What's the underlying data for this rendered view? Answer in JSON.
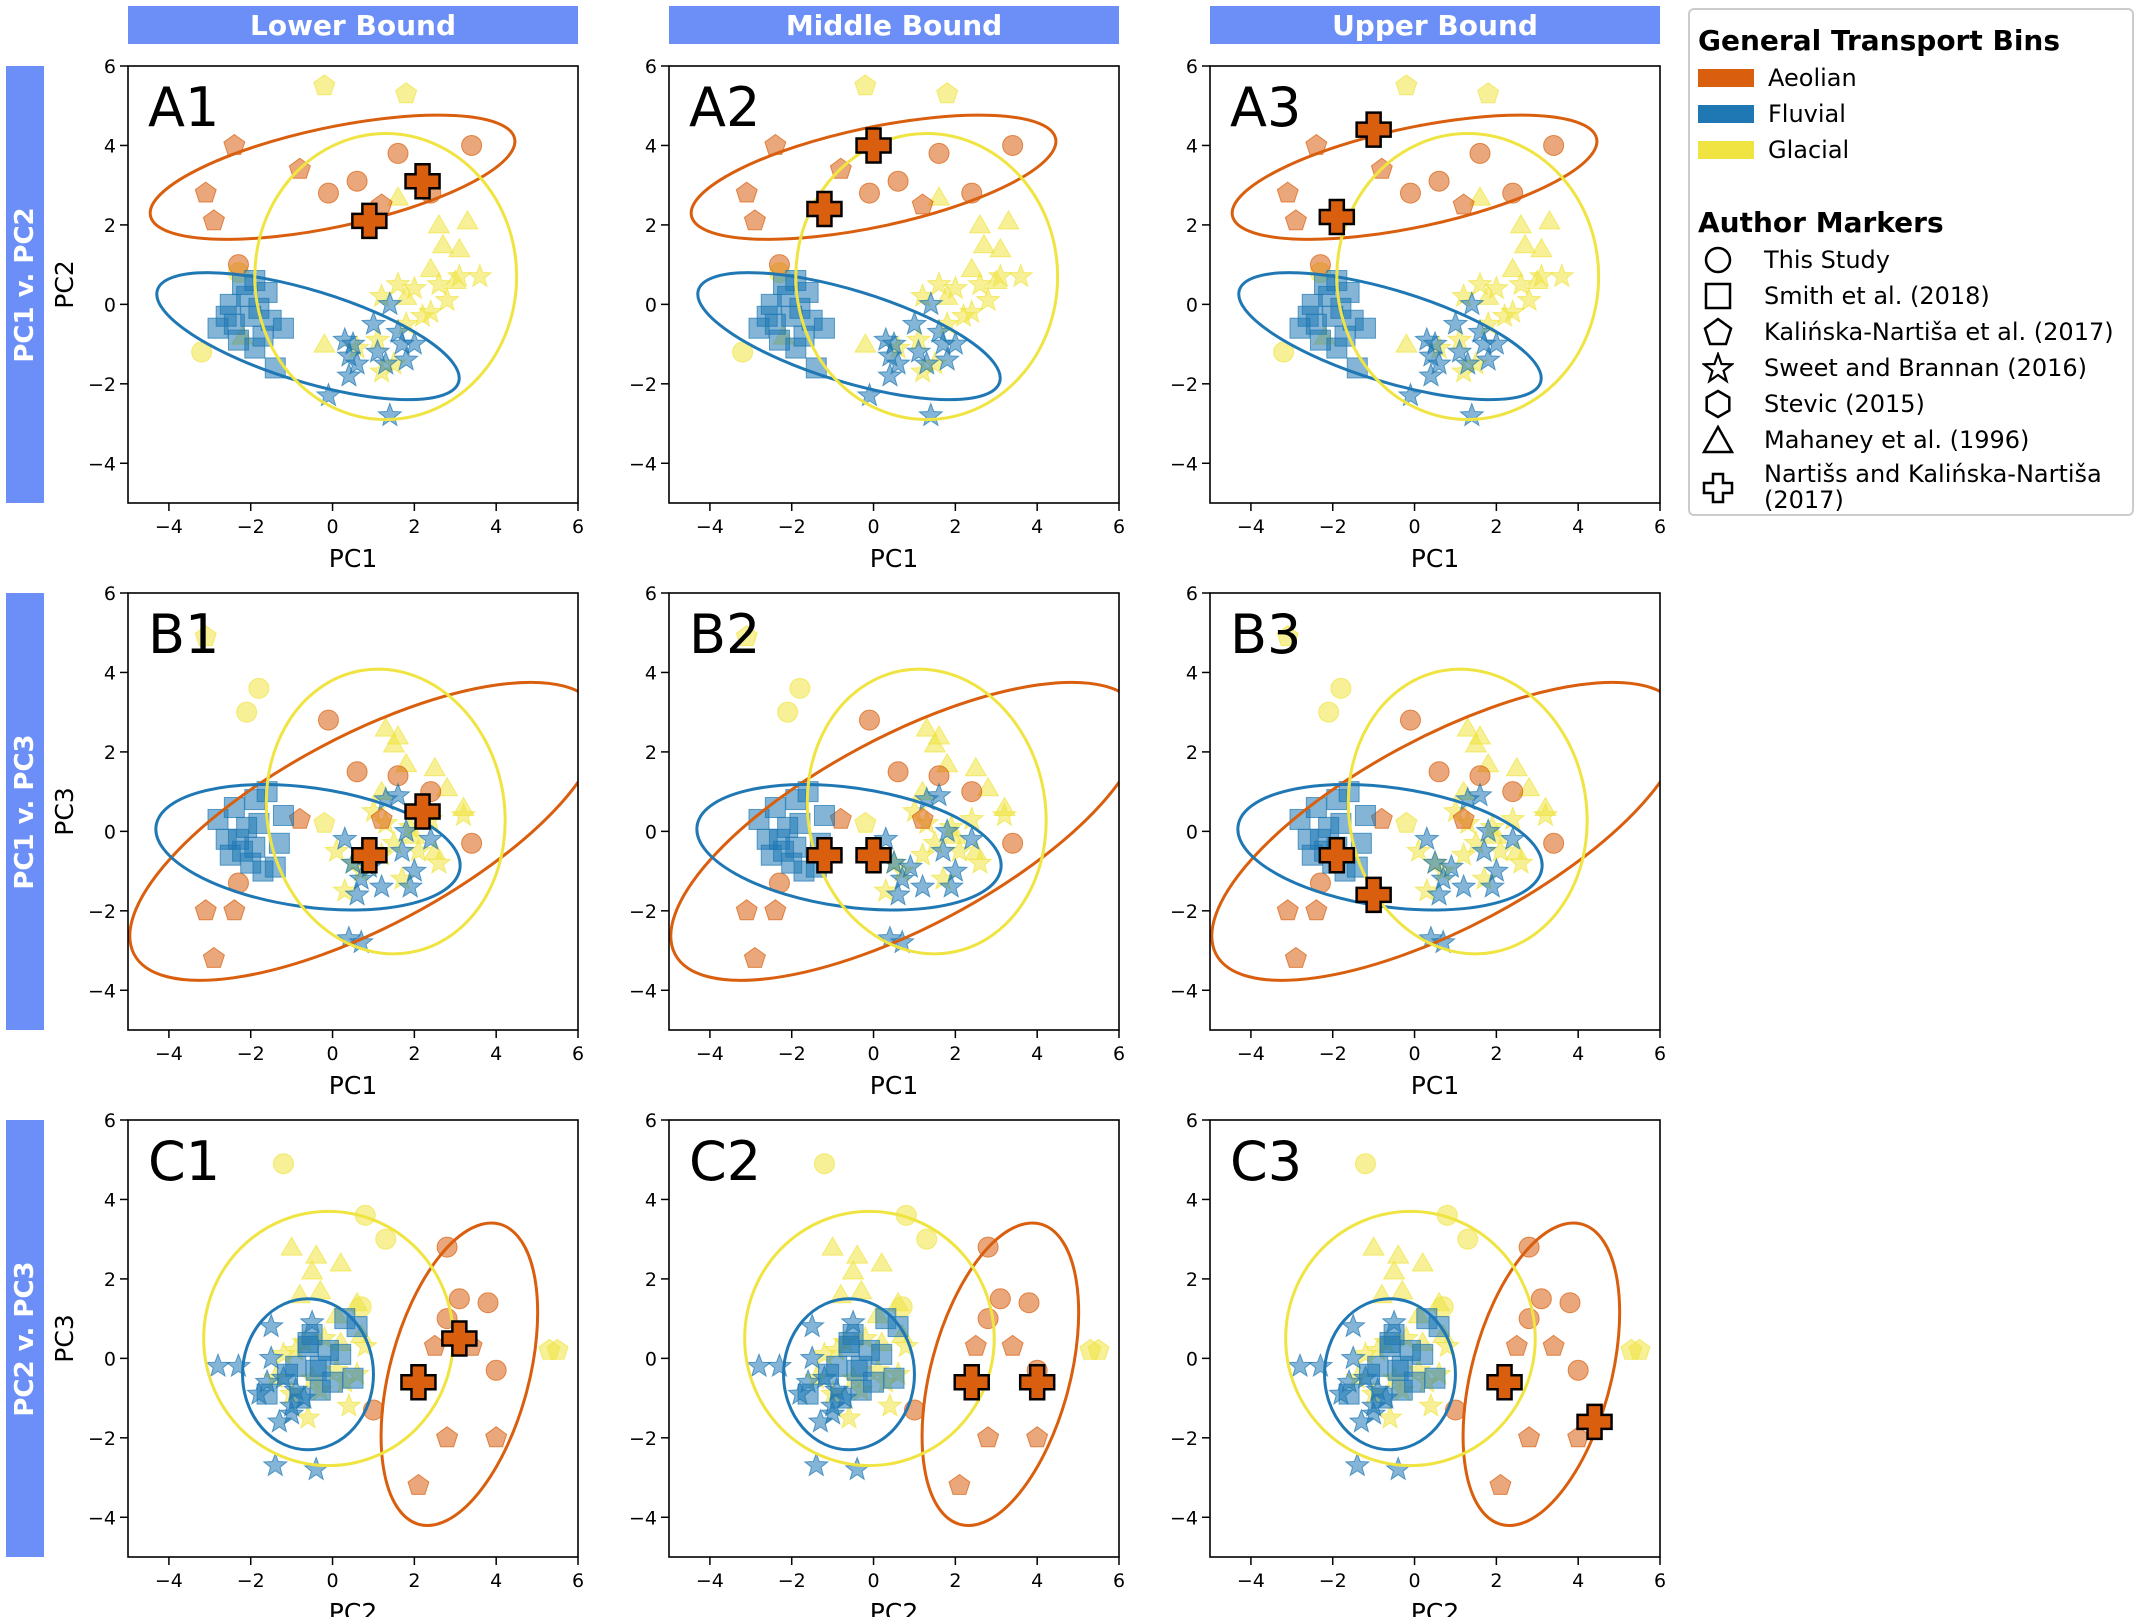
{
  "column_headers": [
    "Lower Bound",
    "Middle Bound",
    "Upper Bound"
  ],
  "row_headers": [
    "PC1 v. PC2",
    "PC1 v. PC3",
    "PC2 v. PC3"
  ],
  "legend": {
    "bins_title": "General Transport Bins",
    "bins": [
      {
        "label": "Aeolian",
        "color": "#d95f0e"
      },
      {
        "label": "Fluvial",
        "color": "#1f78b4"
      },
      {
        "label": "Glacial",
        "color": "#f0e442"
      }
    ],
    "markers_title": "Author Markers",
    "markers": [
      {
        "shape": "circle",
        "label": "This Study"
      },
      {
        "shape": "square",
        "label": "Smith et al. (2018)"
      },
      {
        "shape": "pentagon",
        "label": "Kalińska-Nartiša et al. (2017)"
      },
      {
        "shape": "star",
        "label": "Sweet and Brannan (2016)"
      },
      {
        "shape": "hexagon",
        "label": "Stevic (2015)"
      },
      {
        "shape": "triangle",
        "label": "Mahaney et al. (1996)"
      },
      {
        "shape": "plus",
        "label_lines": [
          "Nartišs and Kalińska-Nartiša",
          "(2017)"
        ]
      }
    ]
  },
  "chart_data": [
    {
      "type": "scatter",
      "panel": "A1",
      "xlabel": "PC1",
      "ylabel": "PC2",
      "xlim": [
        -5,
        6
      ],
      "ylim": [
        -5,
        6
      ],
      "xticks": [
        -4,
        -2,
        0,
        2,
        4,
        6
      ],
      "yticks": [
        -4,
        -2,
        0,
        2,
        4,
        6
      ],
      "plus_points": [
        [
          0.9,
          2.1
        ],
        [
          2.2,
          3.1
        ]
      ]
    },
    {
      "type": "scatter",
      "panel": "A2",
      "xlabel": "PC1",
      "ylabel": "",
      "xlim": [
        -5,
        6
      ],
      "ylim": [
        -5,
        6
      ],
      "xticks": [
        -4,
        -2,
        0,
        2,
        4,
        6
      ],
      "yticks": [
        -4,
        -2,
        0,
        2,
        4,
        6
      ],
      "plus_points": [
        [
          -1.2,
          2.4
        ],
        [
          0.0,
          4.0
        ]
      ]
    },
    {
      "type": "scatter",
      "panel": "A3",
      "xlabel": "PC1",
      "ylabel": "",
      "xlim": [
        -5,
        6
      ],
      "ylim": [
        -5,
        6
      ],
      "xticks": [
        -4,
        -2,
        0,
        2,
        4,
        6
      ],
      "yticks": [
        -4,
        -2,
        0,
        2,
        4,
        6
      ],
      "plus_points": [
        [
          -1.9,
          2.2
        ],
        [
          -1.0,
          4.4
        ]
      ]
    },
    {
      "type": "scatter",
      "panel": "B1",
      "xlabel": "PC1",
      "ylabel": "PC3",
      "xlim": [
        -5,
        6
      ],
      "ylim": [
        -5,
        6
      ],
      "xticks": [
        -4,
        -2,
        0,
        2,
        4,
        6
      ],
      "yticks": [
        -4,
        -2,
        0,
        2,
        4,
        6
      ],
      "plus_points": [
        [
          0.9,
          -0.6
        ],
        [
          2.2,
          0.5
        ]
      ]
    },
    {
      "type": "scatter",
      "panel": "B2",
      "xlabel": "PC1",
      "ylabel": "",
      "xlim": [
        -5,
        6
      ],
      "ylim": [
        -5,
        6
      ],
      "xticks": [
        -4,
        -2,
        0,
        2,
        4,
        6
      ],
      "yticks": [
        -4,
        -2,
        0,
        2,
        4,
        6
      ],
      "plus_points": [
        [
          -1.2,
          -0.6
        ],
        [
          0.0,
          -0.6
        ]
      ]
    },
    {
      "type": "scatter",
      "panel": "B3",
      "xlabel": "PC1",
      "ylabel": "",
      "xlim": [
        -5,
        6
      ],
      "ylim": [
        -5,
        6
      ],
      "xticks": [
        -4,
        -2,
        0,
        2,
        4,
        6
      ],
      "yticks": [
        -4,
        -2,
        0,
        2,
        4,
        6
      ],
      "plus_points": [
        [
          -1.9,
          -0.6
        ],
        [
          -1.0,
          -1.6
        ]
      ]
    },
    {
      "type": "scatter",
      "panel": "C1",
      "xlabel": "PC2",
      "ylabel": "PC3",
      "xlim": [
        -5,
        6
      ],
      "ylim": [
        -5,
        6
      ],
      "xticks": [
        -4,
        -2,
        0,
        2,
        4,
        6
      ],
      "yticks": [
        -4,
        -2,
        0,
        2,
        4,
        6
      ],
      "plus_points": [
        [
          2.1,
          -0.6
        ],
        [
          3.1,
          0.5
        ]
      ]
    },
    {
      "type": "scatter",
      "panel": "C2",
      "xlabel": "PC2",
      "ylabel": "",
      "xlim": [
        -5,
        6
      ],
      "ylim": [
        -5,
        6
      ],
      "xticks": [
        -4,
        -2,
        0,
        2,
        4,
        6
      ],
      "yticks": [
        -4,
        -2,
        0,
        2,
        4,
        6
      ],
      "plus_points": [
        [
          2.4,
          -0.6
        ],
        [
          4.0,
          -0.6
        ]
      ]
    },
    {
      "type": "scatter",
      "panel": "C3",
      "xlabel": "PC2",
      "ylabel": "",
      "xlim": [
        -5,
        6
      ],
      "ylim": [
        -5,
        6
      ],
      "xticks": [
        -4,
        -2,
        0,
        2,
        4,
        6
      ],
      "yticks": [
        -4,
        -2,
        0,
        2,
        4,
        6
      ],
      "plus_points": [
        [
          2.2,
          -0.6
        ],
        [
          4.4,
          -1.6
        ]
      ]
    }
  ],
  "pc12": {
    "aeolian_circle": [
      [
        -0.1,
        2.8
      ],
      [
        0.6,
        3.1
      ],
      [
        1.6,
        3.8
      ],
      [
        2.4,
        2.8
      ],
      [
        3.4,
        4.0
      ],
      [
        -2.3,
        1.0
      ]
    ],
    "aeolian_pentagon": [
      [
        -3.1,
        2.8
      ],
      [
        -2.9,
        2.1
      ],
      [
        -2.4,
        4.0
      ],
      [
        -0.8,
        3.4
      ],
      [
        1.2,
        2.5
      ]
    ],
    "fluvial_square": [
      [
        -2.8,
        -0.6
      ],
      [
        -2.6,
        -0.3
      ],
      [
        -2.4,
        -0.5
      ],
      [
        -2.2,
        0.5
      ],
      [
        -2.1,
        0.2
      ],
      [
        -2.0,
        -0.3
      ],
      [
        -1.9,
        0.6
      ],
      [
        -1.8,
        -0.1
      ],
      [
        -1.7,
        -0.8
      ],
      [
        -1.6,
        0.3
      ],
      [
        -1.5,
        -0.4
      ],
      [
        -1.2,
        -0.6
      ],
      [
        -2.3,
        -0.9
      ],
      [
        -1.9,
        -1.1
      ],
      [
        -1.4,
        -1.6
      ],
      [
        -2.5,
        0.0
      ]
    ],
    "fluvial_star": [
      [
        -0.1,
        -2.3
      ],
      [
        0.3,
        -0.9
      ],
      [
        0.4,
        -1.3
      ],
      [
        0.5,
        -1.0
      ],
      [
        0.6,
        -1.5
      ],
      [
        1.0,
        -0.5
      ],
      [
        1.1,
        -1.2
      ],
      [
        1.3,
        -1.5
      ],
      [
        1.4,
        0.0
      ],
      [
        1.6,
        -0.7
      ],
      [
        1.7,
        -1.0
      ],
      [
        1.8,
        -1.4
      ],
      [
        2.0,
        -1.0
      ],
      [
        1.4,
        -2.8
      ],
      [
        0.4,
        -1.8
      ]
    ],
    "glacial_circle": [
      [
        -3.2,
        -1.2
      ],
      [
        -2.3,
        0.8
      ]
    ],
    "glacial_pentagon": [
      [
        -0.2,
        5.5
      ],
      [
        1.8,
        5.3
      ]
    ],
    "glacial_triangle": [
      [
        1.6,
        2.7
      ],
      [
        2.6,
        2.0
      ],
      [
        2.7,
        1.5
      ],
      [
        3.1,
        1.4
      ],
      [
        3.3,
        2.1
      ],
      [
        3.0,
        0.6
      ],
      [
        1.8,
        0.2
      ],
      [
        -0.2,
        -1.0
      ],
      [
        -2.2,
        -0.8
      ],
      [
        2.4,
        0.9
      ]
    ],
    "glacial_star": [
      [
        1.2,
        0.2
      ],
      [
        1.6,
        0.5
      ],
      [
        2.0,
        0.4
      ],
      [
        2.4,
        -0.2
      ],
      [
        2.6,
        0.5
      ],
      [
        2.8,
        0.1
      ],
      [
        3.1,
        0.7
      ],
      [
        3.6,
        0.7
      ],
      [
        1.1,
        -0.9
      ],
      [
        1.5,
        -1.5
      ],
      [
        1.8,
        -0.5
      ],
      [
        1.2,
        -1.7
      ],
      [
        0.6,
        -1.1
      ],
      [
        2.2,
        -0.3
      ]
    ],
    "ell_aeolian": {
      "cx": 0.0,
      "cy": 3.2,
      "rx": 4.55,
      "ry": 1.25,
      "rot": 12
    },
    "ell_fluvial": {
      "cx": -0.6,
      "cy": -0.8,
      "rx": 3.85,
      "ry": 1.15,
      "rot": -17
    },
    "ell_glacial": {
      "cx": 1.3,
      "cy": 0.7,
      "rx": 3.2,
      "ry": 3.6,
      "rot": 0
    }
  },
  "pc13": {
    "aeolian_circle": [
      [
        -0.1,
        2.8
      ],
      [
        0.6,
        1.5
      ],
      [
        1.6,
        1.4
      ],
      [
        2.4,
        1.0
      ],
      [
        3.4,
        -0.3
      ],
      [
        -2.3,
        -1.3
      ]
    ],
    "aeolian_pentagon": [
      [
        -3.1,
        -2.0
      ],
      [
        -2.9,
        -3.2
      ],
      [
        -2.4,
        -2.0
      ],
      [
        -0.8,
        0.3
      ],
      [
        1.2,
        0.3
      ]
    ],
    "fluvial_square": [
      [
        -2.8,
        0.3
      ],
      [
        -2.6,
        -0.2
      ],
      [
        -2.4,
        0.6
      ],
      [
        -2.2,
        -0.5
      ],
      [
        -2.1,
        0.1
      ],
      [
        -2.0,
        -0.8
      ],
      [
        -1.9,
        0.8
      ],
      [
        -1.8,
        0.2
      ],
      [
        -1.7,
        -1.0
      ],
      [
        -1.6,
        1.0
      ],
      [
        -1.3,
        -0.3
      ],
      [
        -1.2,
        0.4
      ],
      [
        -2.3,
        -0.2
      ],
      [
        -1.9,
        -0.4
      ],
      [
        -1.4,
        -0.9
      ],
      [
        -2.5,
        -0.6
      ]
    ],
    "fluvial_star": [
      [
        0.3,
        -0.2
      ],
      [
        0.5,
        -0.8
      ],
      [
        0.6,
        -1.6
      ],
      [
        0.7,
        -1.2
      ],
      [
        1.3,
        0.8
      ],
      [
        1.6,
        0.9
      ],
      [
        1.7,
        -0.5
      ],
      [
        1.8,
        0.0
      ],
      [
        2.0,
        -1.0
      ],
      [
        1.9,
        -1.4
      ],
      [
        0.4,
        -2.7
      ],
      [
        0.7,
        -2.8
      ],
      [
        2.4,
        -0.2
      ],
      [
        0.9,
        -0.9
      ],
      [
        1.2,
        -1.4
      ]
    ],
    "glacial_circle": [
      [
        -1.8,
        3.6
      ],
      [
        -2.1,
        3.0
      ]
    ],
    "glacial_pentagon": [
      [
        -3.1,
        4.9
      ],
      [
        -0.2,
        0.2
      ]
    ],
    "glacial_triangle": [
      [
        1.3,
        2.6
      ],
      [
        1.5,
        2.2
      ],
      [
        1.6,
        2.4
      ],
      [
        2.5,
        1.6
      ],
      [
        2.8,
        1.1
      ],
      [
        3.2,
        0.6
      ],
      [
        1.8,
        1.7
      ],
      [
        2.5,
        -0.5
      ],
      [
        2.0,
        -0.1
      ],
      [
        1.2,
        1.0
      ]
    ],
    "glacial_star": [
      [
        0.1,
        -0.5
      ],
      [
        0.5,
        -0.8
      ],
      [
        0.7,
        -1.0
      ],
      [
        1.2,
        -0.6
      ],
      [
        1.5,
        -0.3
      ],
      [
        1.9,
        0.1
      ],
      [
        2.1,
        -0.5
      ],
      [
        2.4,
        0.3
      ],
      [
        2.6,
        -0.8
      ],
      [
        3.2,
        0.4
      ],
      [
        1.3,
        0.2
      ],
      [
        1.7,
        -1.2
      ],
      [
        0.3,
        -1.5
      ],
      [
        1.0,
        0.5
      ]
    ],
    "ell_aeolian": {
      "cx": 0.8,
      "cy": 0.0,
      "rx": 6.4,
      "ry": 2.4,
      "rot": 28
    },
    "ell_fluvial": {
      "cx": -0.6,
      "cy": -0.4,
      "rx": 3.75,
      "ry": 1.5,
      "rot": -8
    },
    "ell_glacial": {
      "cx": 1.3,
      "cy": 0.5,
      "rx": 2.9,
      "ry": 3.6,
      "rot": 10
    }
  },
  "pc23": {
    "aeolian_circle": [
      [
        2.8,
        2.8
      ],
      [
        3.1,
        1.5
      ],
      [
        3.8,
        1.4
      ],
      [
        2.8,
        1.0
      ],
      [
        4.0,
        -0.3
      ],
      [
        1.0,
        -1.3
      ]
    ],
    "aeolian_pentagon": [
      [
        2.8,
        -2.0
      ],
      [
        2.1,
        -3.2
      ],
      [
        4.0,
        -2.0
      ],
      [
        3.4,
        0.3
      ],
      [
        2.5,
        0.3
      ]
    ],
    "fluvial_square": [
      [
        -0.6,
        0.3
      ],
      [
        -0.3,
        -0.2
      ],
      [
        -0.5,
        0.6
      ],
      [
        0.5,
        -0.5
      ],
      [
        0.2,
        0.1
      ],
      [
        -0.3,
        -0.8
      ],
      [
        0.6,
        0.8
      ],
      [
        -0.1,
        0.2
      ],
      [
        -0.8,
        -1.0
      ],
      [
        0.3,
        1.0
      ],
      [
        -0.4,
        -0.3
      ],
      [
        -0.6,
        0.4
      ],
      [
        -0.9,
        -0.2
      ],
      [
        -1.1,
        -0.4
      ],
      [
        -1.6,
        -0.9
      ],
      [
        0.0,
        -0.6
      ]
    ],
    "fluvial_star": [
      [
        -2.3,
        -0.2
      ],
      [
        -0.9,
        -0.8
      ],
      [
        -1.3,
        -1.6
      ],
      [
        -1.0,
        -1.2
      ],
      [
        -1.5,
        0.8
      ],
      [
        -0.5,
        0.9
      ],
      [
        -1.2,
        -0.5
      ],
      [
        -1.5,
        0.0
      ],
      [
        -0.7,
        -1.0
      ],
      [
        -1.0,
        -1.4
      ],
      [
        -1.4,
        -2.7
      ],
      [
        -2.8,
        -0.2
      ],
      [
        -1.8,
        -0.9
      ],
      [
        -0.4,
        -2.8
      ],
      [
        -1.6,
        -0.6
      ]
    ],
    "glacial_circle": [
      [
        -1.2,
        4.9
      ],
      [
        0.8,
        3.6
      ],
      [
        0.7,
        1.3
      ],
      [
        1.3,
        3.0
      ]
    ],
    "glacial_pentagon": [
      [
        5.5,
        0.2
      ],
      [
        5.3,
        0.2
      ]
    ],
    "glacial_triangle": [
      [
        -1.0,
        2.8
      ],
      [
        -0.4,
        2.6
      ],
      [
        0.2,
        2.4
      ],
      [
        -0.8,
        1.6
      ],
      [
        0.6,
        1.4
      ],
      [
        0.1,
        1.1
      ],
      [
        0.7,
        0.6
      ],
      [
        -0.3,
        1.7
      ],
      [
        -0.5,
        2.2
      ],
      [
        0.2,
        0.4
      ]
    ],
    "glacial_star": [
      [
        -1.2,
        0.1
      ],
      [
        -0.7,
        0.4
      ],
      [
        -0.5,
        -0.5
      ],
      [
        -0.3,
        -0.8
      ],
      [
        0.1,
        -0.3
      ],
      [
        0.3,
        -0.6
      ],
      [
        -0.9,
        0.2
      ],
      [
        -1.4,
        -0.5
      ],
      [
        -0.2,
        0.5
      ],
      [
        0.6,
        -0.4
      ],
      [
        -1.0,
        -0.9
      ],
      [
        0.4,
        -1.2
      ],
      [
        -0.6,
        -1.5
      ],
      [
        0.8,
        0.3
      ]
    ],
    "ell_aeolian": {
      "cx": 3.1,
      "cy": -0.4,
      "rx": 3.8,
      "ry": 1.75,
      "rot": 75
    },
    "ell_fluvial": {
      "cx": -0.6,
      "cy": -0.4,
      "rx": 1.6,
      "ry": 1.9,
      "rot": 0
    },
    "ell_glacial": {
      "cx": -0.1,
      "cy": 0.5,
      "rx": 3.05,
      "ry": 3.2,
      "rot": 0
    }
  }
}
